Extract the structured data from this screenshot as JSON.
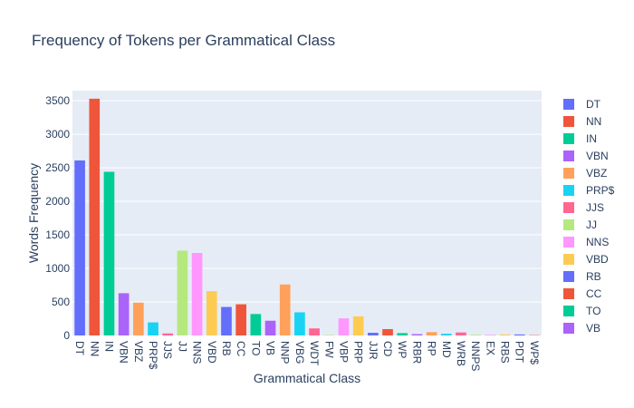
{
  "chart_data": {
    "type": "bar",
    "title": "Frequency of Tokens per Grammatical Class",
    "xlabel": "Grammatical Class",
    "ylabel": "Words Frequency",
    "ylim": [
      0,
      3650
    ],
    "yticks": [
      0,
      500,
      1000,
      1500,
      2000,
      2500,
      3000,
      3500
    ],
    "grid": true,
    "legend_position": "right",
    "categories": [
      "DT",
      "NN",
      "IN",
      "VBN",
      "VBZ",
      "PRP$",
      "JJS",
      "JJ",
      "NNS",
      "VBD",
      "RB",
      "CC",
      "TO",
      "VB",
      "NNP",
      "VBG",
      "WDT",
      "FW",
      "VBP",
      "PRP",
      "JJR",
      "CD",
      "WP",
      "RBR",
      "RP",
      "MD",
      "WRB",
      "NNPS",
      "EX",
      "RBS",
      "PDT",
      "WP$"
    ],
    "values": [
      2610,
      3530,
      2440,
      630,
      490,
      195,
      30,
      1265,
      1230,
      660,
      425,
      465,
      320,
      220,
      760,
      345,
      105,
      8,
      255,
      285,
      40,
      95,
      35,
      20,
      50,
      25,
      45,
      12,
      10,
      15,
      15,
      5
    ],
    "colors": [
      "#636efa",
      "#EF553B",
      "#00cc96",
      "#ab63fa",
      "#FFA15A",
      "#19d3f3",
      "#FF6692",
      "#B6E880",
      "#FF97FF",
      "#FECB52"
    ],
    "legend": [
      "DT",
      "NN",
      "IN",
      "VBN",
      "VBZ",
      "PRP$",
      "JJS",
      "JJ",
      "NNS",
      "VBD",
      "RB",
      "CC",
      "TO",
      "VB"
    ]
  }
}
